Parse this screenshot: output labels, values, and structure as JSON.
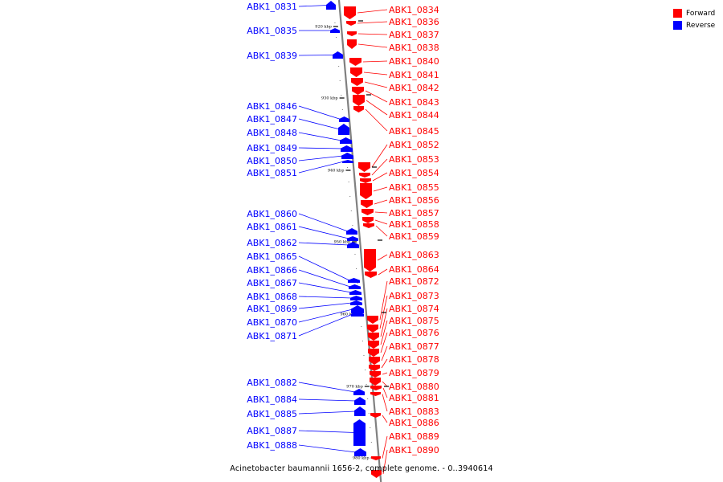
{
  "legend": [
    {
      "label": "Forward",
      "color": "#ff0000"
    },
    {
      "label": "Reverse",
      "color": "#0000ff"
    }
  ],
  "caption": "Acinetobacter baumannii 1656-2, complete genome. - 0..3940614",
  "colors": {
    "forward": "#ff0000",
    "reverse": "#0000ff",
    "axis": "#808080"
  },
  "ticks": [
    "920 kbp",
    "930 kbp",
    "940 kbp",
    "950 kbp",
    "960 kbp",
    "970 kbp",
    "980 kbp"
  ],
  "reverse_genes": [
    "ABK1_0831",
    "ABK1_0835",
    "ABK1_0839",
    "ABK1_0846",
    "ABK1_0847",
    "ABK1_0848",
    "ABK1_0849",
    "ABK1_0850",
    "ABK1_0851",
    "ABK1_0860",
    "ABK1_0861",
    "ABK1_0862",
    "ABK1_0865",
    "ABK1_0866",
    "ABK1_0867",
    "ABK1_0868",
    "ABK1_0869",
    "ABK1_0870",
    "ABK1_0871",
    "ABK1_0882",
    "ABK1_0884",
    "ABK1_0885",
    "ABK1_0887",
    "ABK1_0888"
  ],
  "forward_genes": [
    "ABK1_0834",
    "ABK1_0836",
    "ABK1_0837",
    "ABK1_0838",
    "ABK1_0840",
    "ABK1_0841",
    "ABK1_0842",
    "ABK1_0843",
    "ABK1_0844",
    "ABK1_0845",
    "ABK1_0852",
    "ABK1_0853",
    "ABK1_0854",
    "ABK1_0855",
    "ABK1_0856",
    "ABK1_0857",
    "ABK1_0858",
    "ABK1_0859",
    "ABK1_0863",
    "ABK1_0864",
    "ABK1_0872",
    "ABK1_0873",
    "ABK1_0874",
    "ABK1_0875",
    "ABK1_0876",
    "ABK1_0877",
    "ABK1_0878",
    "ABK1_0879",
    "ABK1_0880",
    "ABK1_0881",
    "ABK1_0883",
    "ABK1_0886",
    "ABK1_0889",
    "ABK1_0890"
  ]
}
